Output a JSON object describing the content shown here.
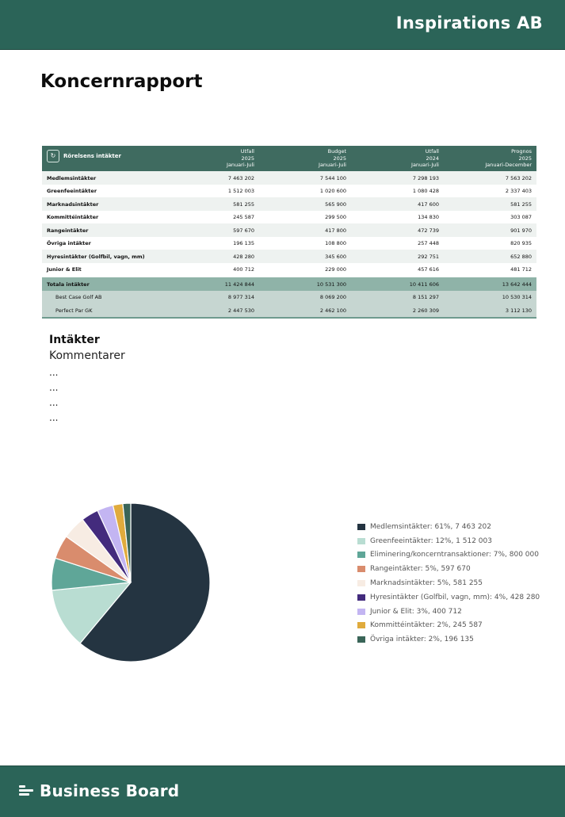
{
  "header": {
    "company": "Inspirations AB"
  },
  "page_title": "Koncernrapport",
  "table": {
    "title": "Rörelsens intäkter",
    "columns": [
      {
        "l1": "Utfall",
        "l2": "2025",
        "l3": "Januari-Juli"
      },
      {
        "l1": "Budget",
        "l2": "2025",
        "l3": "Januari-Juli"
      },
      {
        "l1": "Utfall",
        "l2": "2024",
        "l3": "Januari-Juli"
      },
      {
        "l1": "Prognos",
        "l2": "2025",
        "l3": "Januari-December"
      }
    ],
    "rows": [
      {
        "label": "Medlemsintäkter",
        "values": [
          "7 463 202",
          "7 544 100",
          "7 298 193",
          "7 563 202"
        ]
      },
      {
        "label": "Greenfeeintäkter",
        "values": [
          "1 512 003",
          "1 020 600",
          "1 080 428",
          "2 337 403"
        ]
      },
      {
        "label": "Marknadsintäkter",
        "values": [
          "581 255",
          "565 900",
          "417 600",
          "581 255"
        ]
      },
      {
        "label": "Kommittéintäkter",
        "values": [
          "245 587",
          "299 500",
          "134 830",
          "303 087"
        ]
      },
      {
        "label": "Rangeintäkter",
        "values": [
          "597 670",
          "417 800",
          "472 739",
          "901 970"
        ]
      },
      {
        "label": "Övriga intäkter",
        "values": [
          "196 135",
          "108 800",
          "257 448",
          "820 935"
        ]
      },
      {
        "label": "Hyresintäkter (Golfbil, vagn, mm)",
        "values": [
          "428 280",
          "345 600",
          "292 751",
          "652 880"
        ]
      },
      {
        "label": "Junior & Elit",
        "values": [
          "400 712",
          "229 000",
          "457 616",
          "481 712"
        ]
      }
    ],
    "total": {
      "label": "Totala intäkter",
      "values": [
        "11 424 844",
        "10 531 300",
        "10 411 606",
        "13 642 444"
      ]
    },
    "subrows": [
      {
        "label": "Best Case Golf AB",
        "values": [
          "8 977 314",
          "8 069 200",
          "8 151 297",
          "10 530 314"
        ]
      },
      {
        "label": "Perfect Par GK",
        "values": [
          "2 447 530",
          "2 462 100",
          "2 260 309",
          "3 112 130"
        ]
      }
    ]
  },
  "section": {
    "title": "Intäkter",
    "subtitle": "Kommentarer",
    "placeholders": [
      "...",
      "...",
      "...",
      "..."
    ]
  },
  "chart_data": {
    "type": "pie",
    "slices": [
      {
        "label": "Medlemsintäkter: 61%, 7 463 202",
        "value": 7463202,
        "color": "#243441"
      },
      {
        "label": "Greenfeeintäkter: 12%, 1 512 003",
        "value": 1512003,
        "color": "#b9ddd2"
      },
      {
        "label": "Eliminering/koncerntransaktioner: 7%, 800 000",
        "value": 800000,
        "color": "#5fa698"
      },
      {
        "label": "Rangeintäkter: 5%, 597 670",
        "value": 597670,
        "color": "#d98c6d"
      },
      {
        "label": "Marknadsintäkter: 5%, 581 255",
        "value": 581255,
        "color": "#f7ece3"
      },
      {
        "label": "Hyresintäkter (Golfbil, vagn, mm): 4%, 428 280",
        "value": 428280,
        "color": "#432b7d"
      },
      {
        "label": "Junior & Elit: 3%, 400 712",
        "value": 400712,
        "color": "#c3b5f2"
      },
      {
        "label": "Kommittéintäkter: 2%, 245 587",
        "value": 245587,
        "color": "#e0ab3d"
      },
      {
        "label": "Övriga intäkter: 2%, 196 135",
        "value": 196135,
        "color": "#3a6558"
      }
    ],
    "legend_position": "right"
  },
  "footer": {
    "brand": "Business Board"
  }
}
